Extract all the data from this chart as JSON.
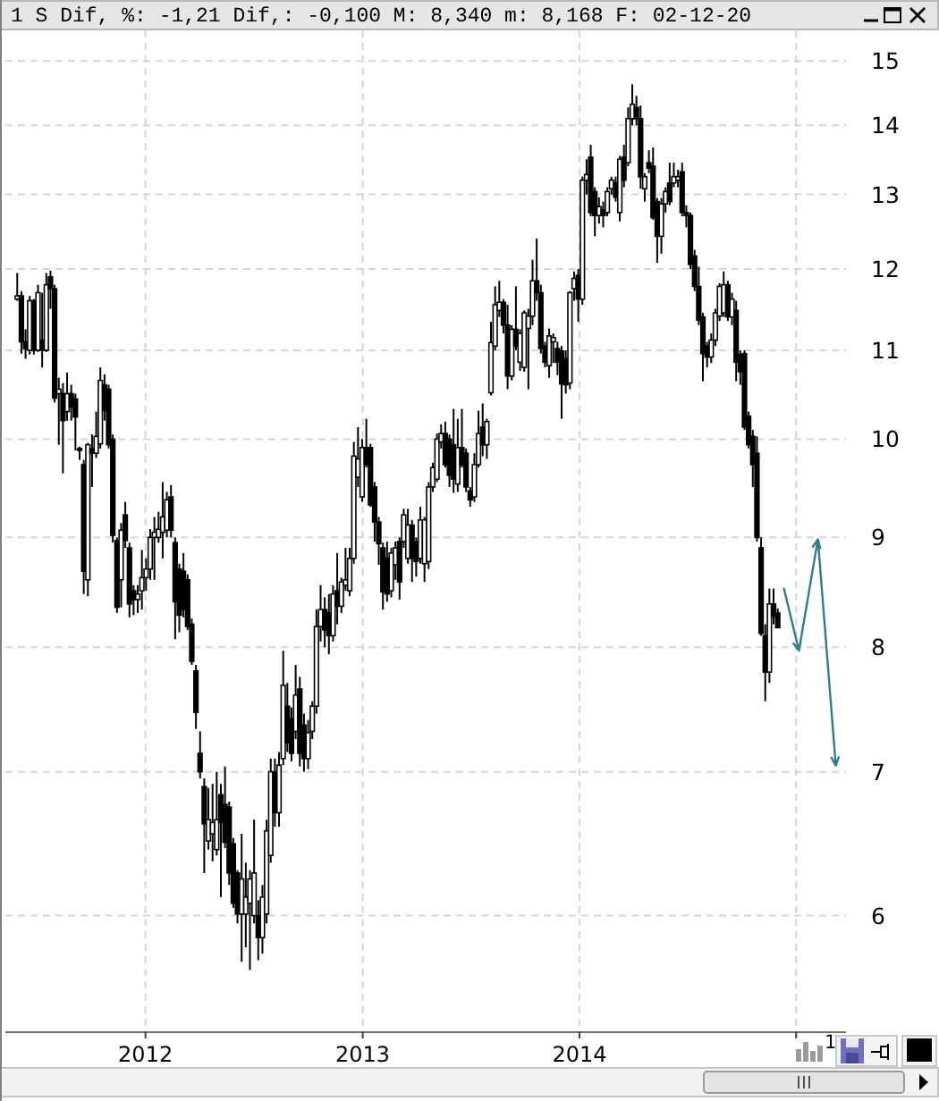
{
  "chart_data": {
    "type": "candlestick",
    "title": "1 S Dif, %: -1,21 Dif,: -0,100 M: 8,340 m: 8,168 F: 02-12-20",
    "x": [
      "2011-05-30",
      "2011-06-06",
      "2011-06-13",
      "2011-06-20",
      "2011-06-27",
      "2011-07-04",
      "2011-07-11",
      "2011-07-18",
      "2011-07-25",
      "2011-08-01",
      "2011-08-08",
      "2011-08-15",
      "2011-08-22",
      "2011-08-29",
      "2011-09-05",
      "2011-09-12",
      "2011-09-19",
      "2011-09-26",
      "2011-10-03",
      "2011-10-10",
      "2011-10-17",
      "2011-10-24",
      "2011-10-31",
      "2011-11-07",
      "2011-11-14",
      "2011-11-21",
      "2011-11-28",
      "2011-12-05",
      "2011-12-12",
      "2011-12-19",
      "2011-12-26",
      "2012-01-02",
      "2012-01-09",
      "2012-01-16",
      "2012-01-23",
      "2012-01-30",
      "2012-02-06",
      "2012-02-13",
      "2012-02-20",
      "2012-02-27",
      "2012-03-05",
      "2012-03-12",
      "2012-03-19",
      "2012-03-26",
      "2012-04-02",
      "2012-04-09",
      "2012-04-16",
      "2012-04-23",
      "2012-04-30",
      "2012-05-07",
      "2012-05-14",
      "2012-05-21",
      "2012-05-28",
      "2012-06-04",
      "2012-06-11",
      "2012-06-18",
      "2012-06-25",
      "2012-07-02",
      "2012-07-09",
      "2012-07-16",
      "2012-07-23",
      "2012-07-30",
      "2012-08-06",
      "2012-08-13",
      "2012-08-20",
      "2012-08-27",
      "2012-09-03",
      "2012-09-10",
      "2012-09-17",
      "2012-09-24",
      "2012-10-01",
      "2012-10-08",
      "2012-10-15",
      "2012-10-22",
      "2012-10-29",
      "2012-11-05",
      "2012-11-12",
      "2012-11-19",
      "2012-11-26",
      "2012-12-03",
      "2012-12-10",
      "2012-12-17",
      "2012-12-24",
      "2012-12-31",
      "2013-01-07",
      "2013-01-14",
      "2013-01-21",
      "2013-01-28",
      "2013-02-04",
      "2013-02-11",
      "2013-02-18",
      "2013-02-25",
      "2013-03-04",
      "2013-03-11",
      "2013-03-18",
      "2013-03-25",
      "2013-04-01",
      "2013-04-08",
      "2013-04-15",
      "2013-04-22",
      "2013-04-29",
      "2013-05-06",
      "2013-05-13",
      "2013-05-20",
      "2013-05-27",
      "2013-06-03",
      "2013-06-10",
      "2013-06-17",
      "2013-06-24",
      "2013-07-01",
      "2013-07-08",
      "2013-07-15",
      "2013-07-22",
      "2013-07-29",
      "2013-08-05",
      "2013-08-12",
      "2013-08-19",
      "2013-08-26",
      "2013-09-02",
      "2013-09-09",
      "2013-09-16",
      "2013-09-23",
      "2013-09-30",
      "2013-10-07",
      "2013-10-14",
      "2013-10-21",
      "2013-10-28",
      "2013-11-04",
      "2013-11-11",
      "2013-11-18",
      "2013-11-25",
      "2013-12-02",
      "2013-12-09",
      "2013-12-16",
      "2013-12-23",
      "2013-12-30",
      "2014-01-06",
      "2014-01-13",
      "2014-01-20",
      "2014-01-27",
      "2014-02-03",
      "2014-02-10",
      "2014-02-17",
      "2014-02-24",
      "2014-03-03",
      "2014-03-10",
      "2014-03-17",
      "2014-03-24",
      "2014-03-31",
      "2014-04-07",
      "2014-04-14",
      "2014-04-21",
      "2014-04-28",
      "2014-05-05",
      "2014-05-12",
      "2014-05-19",
      "2014-05-26",
      "2014-06-02",
      "2014-06-09",
      "2014-06-16",
      "2014-06-23",
      "2014-06-30",
      "2014-07-07",
      "2014-07-14",
      "2014-07-21",
      "2014-07-28",
      "2014-08-04",
      "2014-08-11",
      "2014-08-18",
      "2014-08-25",
      "2014-09-01",
      "2014-09-08",
      "2014-09-15",
      "2014-09-22",
      "2014-09-29",
      "2014-10-06",
      "2014-10-13",
      "2014-10-20",
      "2014-10-27",
      "2014-11-03",
      "2014-11-10",
      "2014-11-17",
      "2014-11-24",
      "2014-12-01"
    ],
    "ohlc": [
      [
        11.62,
        11.95,
        11.6,
        11.66
      ],
      [
        11.66,
        11.72,
        10.96,
        11.1
      ],
      [
        11.1,
        11.25,
        10.9,
        11.02
      ],
      [
        11.0,
        11.66,
        10.95,
        11.6
      ],
      [
        11.6,
        11.62,
        10.95,
        11.0
      ],
      [
        11.0,
        11.8,
        10.98,
        11.7
      ],
      [
        11.12,
        11.7,
        10.8,
        11.0
      ],
      [
        11.0,
        11.95,
        10.98,
        11.8
      ],
      [
        11.9,
        11.98,
        11.5,
        11.75
      ],
      [
        11.75,
        11.8,
        10.4,
        10.45
      ],
      [
        10.5,
        10.68,
        9.94,
        10.55
      ],
      [
        10.5,
        10.62,
        9.64,
        10.2
      ],
      [
        10.3,
        10.74,
        10.2,
        10.5
      ],
      [
        10.5,
        10.6,
        10.2,
        10.35
      ],
      [
        10.44,
        10.5,
        9.88,
        10.24
      ],
      [
        9.9,
        9.92,
        9.78,
        9.88
      ],
      [
        9.73,
        9.78,
        8.47,
        8.68
      ],
      [
        8.6,
        9.96,
        8.45,
        9.94
      ],
      [
        9.9,
        10.05,
        9.5,
        9.85
      ],
      [
        9.85,
        10.3,
        9.8,
        10.03
      ],
      [
        9.95,
        10.8,
        9.9,
        10.65
      ],
      [
        10.6,
        10.72,
        10.2,
        10.31
      ],
      [
        10.55,
        10.6,
        9.9,
        9.94
      ],
      [
        10.0,
        10.05,
        8.95,
        9.02
      ],
      [
        8.97,
        9.0,
        8.3,
        8.35
      ],
      [
        8.6,
        9.14,
        8.35,
        9.07
      ],
      [
        9.22,
        9.35,
        8.9,
        8.97
      ],
      [
        8.9,
        8.95,
        8.26,
        8.38
      ],
      [
        8.5,
        8.55,
        8.28,
        8.42
      ],
      [
        8.42,
        8.55,
        8.3,
        8.47
      ],
      [
        8.5,
        8.88,
        8.33,
        8.62
      ],
      [
        8.62,
        8.8,
        8.5,
        8.7
      ],
      [
        8.7,
        9.08,
        8.6,
        9.0
      ],
      [
        9.0,
        9.2,
        8.6,
        9.05
      ],
      [
        9.0,
        9.25,
        8.95,
        9.08
      ],
      [
        9.05,
        9.55,
        8.8,
        9.2
      ],
      [
        9.07,
        9.45,
        9.0,
        9.37
      ],
      [
        9.4,
        9.52,
        9.0,
        9.07
      ],
      [
        8.95,
        9.0,
        8.07,
        8.4
      ],
      [
        8.7,
        8.75,
        8.13,
        8.28
      ],
      [
        8.68,
        8.85,
        8.26,
        8.33
      ],
      [
        8.6,
        8.65,
        8.15,
        8.18
      ],
      [
        8.2,
        8.25,
        7.85,
        7.88
      ],
      [
        7.8,
        7.85,
        7.33,
        7.46
      ],
      [
        7.14,
        7.31,
        6.95,
        7.0
      ],
      [
        6.89,
        6.95,
        6.28,
        6.62
      ],
      [
        6.5,
        6.88,
        6.44,
        6.65
      ],
      [
        6.55,
        6.91,
        6.36,
        6.63
      ],
      [
        6.44,
        7.0,
        6.4,
        6.65
      ],
      [
        6.83,
        6.91,
        6.12,
        6.63
      ],
      [
        6.76,
        7.04,
        6.45,
        6.49
      ],
      [
        6.74,
        6.78,
        6.2,
        6.28
      ],
      [
        6.48,
        6.52,
        6.05,
        6.08
      ],
      [
        6.28,
        6.3,
        5.95,
        6.01
      ],
      [
        6.01,
        6.55,
        5.71,
        6.24
      ],
      [
        6.01,
        6.35,
        5.8,
        6.12
      ],
      [
        6.08,
        6.3,
        5.66,
        6.24
      ],
      [
        6.0,
        6.65,
        5.95,
        6.28
      ],
      [
        6.0,
        6.1,
        5.72,
        5.86
      ],
      [
        5.86,
        6.2,
        5.76,
        6.12
      ],
      [
        6.01,
        6.65,
        5.95,
        6.57
      ],
      [
        6.4,
        7.1,
        6.35,
        7.0
      ],
      [
        7.0,
        7.1,
        6.6,
        6.7
      ],
      [
        6.7,
        7.15,
        6.6,
        7.05
      ],
      [
        7.1,
        7.97,
        7.05,
        7.68
      ],
      [
        7.51,
        7.7,
        7.15,
        7.22
      ],
      [
        7.41,
        7.5,
        7.08,
        7.14
      ],
      [
        7.31,
        7.85,
        7.25,
        7.6
      ],
      [
        7.65,
        7.75,
        7.04,
        7.14
      ],
      [
        7.36,
        7.45,
        7.0,
        7.1
      ],
      [
        7.1,
        7.4,
        7.02,
        7.3
      ],
      [
        7.31,
        7.55,
        7.25,
        7.51
      ],
      [
        7.51,
        8.33,
        7.45,
        8.18
      ],
      [
        8.18,
        8.55,
        8.05,
        8.33
      ],
      [
        8.33,
        8.44,
        8.0,
        8.15
      ],
      [
        8.3,
        8.47,
        7.94,
        8.1
      ],
      [
        8.1,
        8.55,
        8.05,
        8.47
      ],
      [
        8.5,
        8.85,
        8.2,
        8.36
      ],
      [
        8.36,
        8.62,
        8.3,
        8.58
      ],
      [
        8.55,
        8.9,
        8.5,
        8.6
      ],
      [
        8.5,
        8.9,
        8.45,
        8.8
      ],
      [
        8.8,
        9.97,
        8.75,
        9.82
      ],
      [
        9.6,
        10.13,
        9.5,
        9.79
      ],
      [
        9.4,
        10.0,
        9.35,
        9.91
      ],
      [
        9.91,
        10.22,
        9.7,
        9.73
      ],
      [
        9.91,
        9.95,
        9.3,
        9.32
      ],
      [
        9.5,
        9.55,
        8.96,
        9.15
      ],
      [
        9.15,
        9.2,
        8.74,
        8.94
      ],
      [
        8.9,
        8.95,
        8.33,
        8.49
      ],
      [
        8.8,
        8.96,
        8.4,
        8.47
      ],
      [
        8.5,
        8.9,
        8.44,
        8.85
      ],
      [
        8.74,
        8.96,
        8.6,
        8.9
      ],
      [
        8.96,
        9.0,
        8.42,
        8.58
      ],
      [
        8.96,
        9.28,
        8.9,
        9.22
      ],
      [
        8.8,
        9.28,
        8.75,
        9.12
      ],
      [
        9.12,
        9.17,
        8.58,
        8.8
      ],
      [
        8.96,
        9.0,
        8.63,
        8.77
      ],
      [
        8.8,
        9.3,
        8.75,
        9.17
      ],
      [
        8.75,
        9.2,
        8.58,
        9.17
      ],
      [
        8.77,
        9.55,
        8.7,
        9.5
      ],
      [
        9.5,
        9.75,
        9.45,
        9.7
      ],
      [
        9.58,
        10.06,
        9.55,
        10.0
      ],
      [
        9.97,
        10.16,
        9.9,
        10.06
      ],
      [
        10.06,
        10.19,
        9.7,
        9.73
      ],
      [
        10.0,
        10.05,
        9.5,
        9.62
      ],
      [
        9.94,
        10.33,
        9.44,
        9.58
      ],
      [
        9.53,
        10.22,
        9.45,
        9.91
      ],
      [
        9.91,
        10.33,
        9.7,
        9.73
      ],
      [
        9.85,
        9.9,
        9.45,
        9.5
      ],
      [
        9.46,
        9.5,
        9.3,
        9.37
      ],
      [
        9.4,
        9.85,
        9.35,
        9.73
      ],
      [
        9.73,
        10.31,
        9.7,
        10.06
      ],
      [
        10.13,
        10.39,
        9.82,
        9.94
      ],
      [
        9.94,
        10.22,
        9.79,
        10.19
      ],
      [
        10.51,
        11.34,
        10.48,
        11.09
      ],
      [
        11.05,
        11.78,
        11.0,
        11.55
      ],
      [
        11.48,
        11.85,
        11.4,
        11.58
      ],
      [
        11.58,
        11.62,
        11.2,
        11.3
      ],
      [
        11.3,
        11.55,
        10.55,
        10.7
      ],
      [
        10.7,
        11.3,
        10.65,
        11.25
      ],
      [
        11.25,
        11.78,
        11.0,
        11.05
      ],
      [
        10.86,
        11.25,
        10.76,
        11.2
      ],
      [
        10.8,
        11.48,
        10.75,
        11.45
      ],
      [
        11.26,
        11.5,
        10.55,
        11.41
      ],
      [
        11.41,
        12.12,
        11.3,
        11.85
      ],
      [
        11.85,
        12.4,
        11.6,
        11.7
      ],
      [
        11.7,
        11.8,
        10.96,
        11.02
      ],
      [
        11.05,
        11.1,
        10.8,
        10.86
      ],
      [
        10.82,
        11.26,
        10.68,
        11.17
      ],
      [
        11.1,
        11.2,
        10.85,
        11.15
      ],
      [
        11.02,
        11.1,
        10.71,
        10.86
      ],
      [
        10.99,
        11.05,
        10.22,
        10.61
      ],
      [
        10.9,
        11.0,
        10.5,
        10.6
      ],
      [
        10.62,
        11.72,
        10.55,
        11.7
      ],
      [
        11.75,
        11.97,
        11.6,
        11.88
      ],
      [
        11.92,
        12.0,
        11.34,
        11.62
      ],
      [
        11.62,
        13.25,
        11.55,
        13.2
      ],
      [
        13.2,
        13.5,
        13.0,
        13.28
      ],
      [
        13.53,
        13.71,
        12.7,
        12.75
      ],
      [
        13.04,
        13.1,
        12.43,
        12.71
      ],
      [
        12.71,
        12.96,
        12.6,
        12.83
      ],
      [
        12.79,
        12.9,
        12.55,
        12.71
      ],
      [
        12.75,
        13.1,
        12.7,
        13.04
      ],
      [
        13.08,
        13.25,
        13.0,
        13.2
      ],
      [
        13.16,
        13.25,
        12.9,
        12.96
      ],
      [
        12.75,
        13.55,
        12.63,
        13.5
      ],
      [
        13.53,
        13.71,
        13.1,
        13.2
      ],
      [
        13.45,
        14.27,
        13.4,
        14.1
      ],
      [
        14.1,
        14.63,
        14.0,
        14.32
      ],
      [
        14.27,
        14.45,
        14.0,
        14.1
      ],
      [
        14.1,
        14.3,
        13.08,
        13.25
      ],
      [
        13.08,
        13.3,
        12.9,
        13.25
      ],
      [
        13.45,
        13.63,
        13.3,
        13.37
      ],
      [
        13.4,
        13.67,
        12.65,
        12.68
      ],
      [
        12.9,
        12.95,
        12.08,
        12.43
      ],
      [
        12.43,
        12.95,
        12.2,
        12.87
      ],
      [
        12.87,
        13.1,
        12.75,
        13.04
      ],
      [
        13.16,
        13.45,
        12.85,
        12.9
      ],
      [
        13.16,
        13.45,
        13.1,
        13.25
      ],
      [
        13.2,
        13.35,
        13.1,
        13.25
      ],
      [
        13.32,
        13.45,
        12.7,
        12.75
      ],
      [
        12.75,
        12.85,
        12.55,
        12.71
      ],
      [
        12.71,
        12.75,
        12.0,
        12.06
      ],
      [
        12.17,
        12.25,
        11.72,
        11.78
      ],
      [
        11.78,
        12.03,
        11.3,
        11.36
      ],
      [
        11.4,
        11.45,
        10.64,
        10.96
      ],
      [
        11.05,
        11.1,
        10.8,
        10.92
      ],
      [
        10.92,
        11.2,
        10.85,
        11.12
      ],
      [
        11.12,
        11.5,
        11.05,
        11.45
      ],
      [
        11.41,
        11.82,
        11.35,
        11.78
      ],
      [
        11.45,
        11.97,
        11.4,
        11.8
      ],
      [
        11.8,
        11.85,
        11.35,
        11.4
      ],
      [
        11.4,
        11.7,
        11.3,
        11.62
      ],
      [
        11.48,
        11.6,
        10.64,
        10.86
      ],
      [
        10.95,
        11.0,
        10.6,
        10.75
      ],
      [
        10.96,
        11.0,
        10.1,
        10.13
      ],
      [
        10.25,
        10.3,
        9.9,
        9.94
      ],
      [
        10.03,
        10.1,
        9.5,
        9.73
      ],
      [
        9.85,
        10.03,
        8.96,
        9.0
      ],
      [
        8.9,
        9.0,
        8.1,
        8.12
      ],
      [
        8.1,
        8.2,
        7.55,
        7.79
      ],
      [
        7.79,
        8.52,
        7.7,
        8.38
      ],
      [
        8.38,
        8.52,
        8.2,
        8.27
      ],
      [
        8.3,
        8.34,
        8.17,
        8.17
      ]
    ],
    "color": "#000000",
    "xlim": [
      "2011-05-10",
      "2015-03-26"
    ],
    "xticks": [
      "2012",
      "2013",
      "2014",
      {
        "value": "2015",
        "label": null
      }
    ],
    "ylim": [
      5.3,
      15.5
    ],
    "yticks": [
      6,
      7,
      8,
      9,
      10,
      11,
      12,
      13,
      14,
      15
    ],
    "log": true,
    "grid": true,
    "annotations": [
      "1"
    ]
  }
}
